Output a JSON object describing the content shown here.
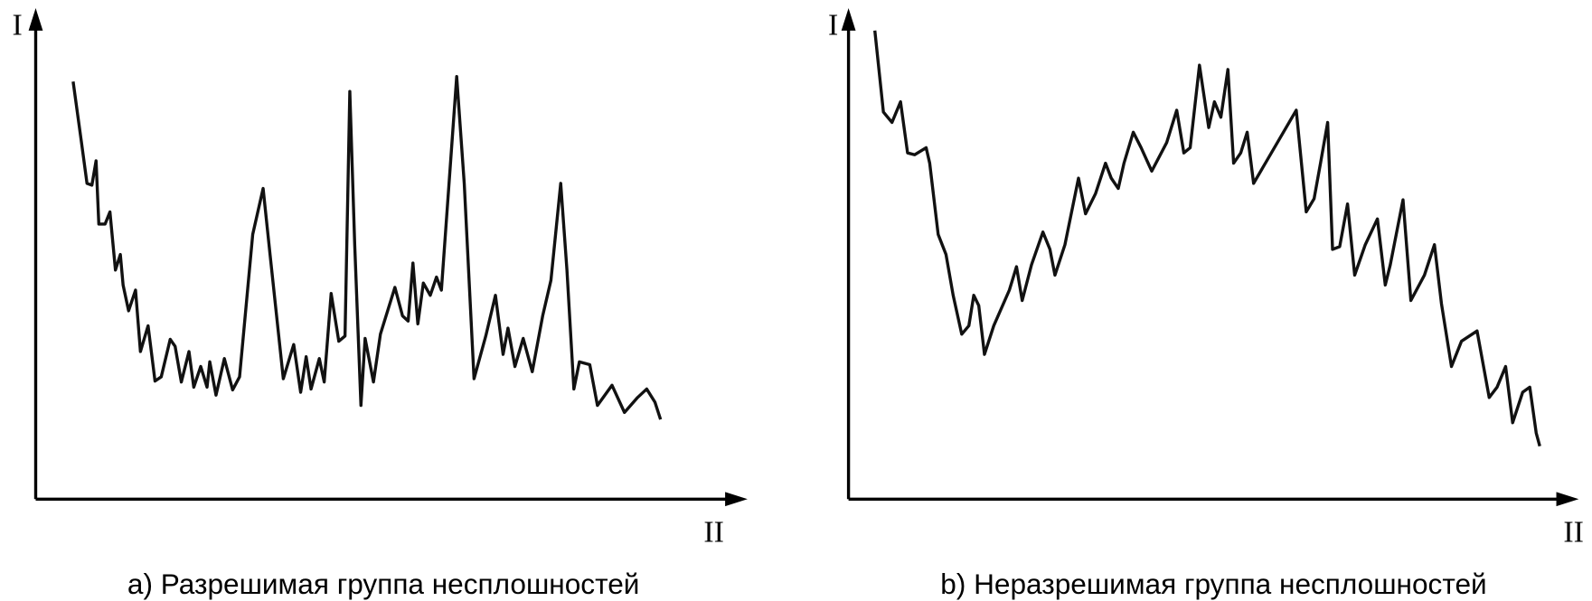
{
  "chart_data": [
    {
      "type": "line",
      "y_label": "I",
      "x_label": "II",
      "caption": "a) Разрешимая группа несплошностей",
      "xlim": [
        0,
        100
      ],
      "ylim": [
        0,
        100
      ],
      "x": [
        5.4,
        6.6,
        7.4,
        8.1,
        8.7,
        9.1,
        10,
        10.7,
        11.5,
        12.2,
        12.6,
        13.4,
        14.4,
        15.1,
        16.2,
        17.2,
        18.1,
        19.4,
        20.1,
        21,
        22.1,
        22.8,
        23.8,
        24.7,
        25.1,
        26,
        27.2,
        28.4,
        29.4,
        31.3,
        32.8,
        33.8,
        35.7,
        37.2,
        38.2,
        39,
        39.7,
        40.9,
        41.6,
        42.6,
        43.7,
        44.6,
        45.3,
        46,
        46.9,
        47.5,
        48.7,
        49.7,
        51.8,
        52.9,
        53.7,
        54.4,
        55.1,
        55.9,
        56.9,
        57.8,
        58.5,
        60.7,
        61.8,
        63.2,
        64.9,
        66.3,
        67.4,
        68.1,
        69.1,
        70.3,
        71.6,
        73.1,
        74.3,
        75.7,
        76.6,
        77.6,
        78.4,
        79.9,
        81,
        83.1,
        84.9,
        86.8,
        88.1,
        89.3,
        90.1
      ],
      "series": [
        {
          "color": "#111111",
          "values": [
            89.1,
            76.1,
            67.4,
            67,
            72.2,
            58.7,
            58.7,
            61.3,
            48.9,
            52.2,
            45.7,
            40.2,
            44.6,
            31.5,
            37,
            25.2,
            26.1,
            34.1,
            32.6,
            25,
            31.5,
            23.9,
            28.3,
            23.9,
            29.3,
            22.2,
            30,
            23.3,
            26.1,
            56.5,
            66.3,
            52.2,
            25.7,
            33,
            22.8,
            30.4,
            23.5,
            30,
            25,
            43.9,
            33.7,
            34.8,
            87,
            54.3,
            20,
            34.3,
            25,
            35.2,
            45.2,
            39.1,
            38,
            50.4,
            37.4,
            46.1,
            43.5,
            47.4,
            44.6,
            90.2,
            67.4,
            25.7,
            34.8,
            43.5,
            30.9,
            36.5,
            28.3,
            34.3,
            27.2,
            39.1,
            46.7,
            67.4,
            48.9,
            23.5,
            29.3,
            28.7,
            20,
            24.3,
            18.5,
            21.7,
            23.5,
            20.7,
            17
          ]
        }
      ]
    },
    {
      "type": "line",
      "y_label": "I",
      "x_label": "II",
      "caption": "b) Неразрешимая группа несплошностей",
      "xlim": [
        0,
        100
      ],
      "ylim": [
        0,
        100
      ],
      "x": [
        3.7,
        4.9,
        6.1,
        7.3,
        8.3,
        9.3,
        10.9,
        11.4,
        12.6,
        13.7,
        14.7,
        15.9,
        16.9,
        17.6,
        18.3,
        19.1,
        20.4,
        22.6,
        23.6,
        24.4,
        25.7,
        27.3,
        28.3,
        29,
        30.4,
        32.3,
        33.3,
        34.7,
        36.1,
        36.9,
        37.9,
        38.7,
        40,
        41.1,
        42.6,
        44.7,
        46.1,
        47.1,
        48,
        49.3,
        50.6,
        51.4,
        52.3,
        53.3,
        54.1,
        55.1,
        56,
        56.9,
        62.9,
        64.3,
        65.4,
        66.3,
        67.3,
        68,
        69,
        70.1,
        71.1,
        72.6,
        74.3,
        75.4,
        76.1,
        77.9,
        79,
        80.9,
        82.3,
        83.3,
        84.7,
        86.1,
        88.3,
        90,
        91.1,
        92.3,
        93.3,
        94.7,
        95.7,
        96.6,
        97.1
      ],
      "series": [
        {
          "color": "#111111",
          "values": [
            100,
            82.6,
            80.4,
            84.8,
            73.9,
            73.5,
            75,
            71.7,
            56.5,
            52.2,
            43.5,
            35.2,
            37,
            43.5,
            41.3,
            30.9,
            37,
            44.6,
            49.6,
            42.4,
            50,
            57,
            53.3,
            47.8,
            54.3,
            68.5,
            60.9,
            65.2,
            71.7,
            68.5,
            66.3,
            71.7,
            78.3,
            75,
            70,
            76.1,
            83,
            73.9,
            75,
            92.6,
            79.3,
            84.8,
            81.5,
            91.7,
            71.7,
            73.9,
            78.3,
            67.4,
            83,
            61.3,
            64.1,
            71.7,
            80.4,
            53.3,
            53.9,
            63,
            47.8,
            54.3,
            59.8,
            45.7,
            50,
            63.9,
            42.4,
            47.8,
            54.3,
            41.7,
            28.3,
            33.7,
            35.9,
            21.7,
            23.9,
            28.3,
            16.3,
            22.8,
            23.9,
            14.1,
            11.3
          ]
        }
      ]
    }
  ]
}
